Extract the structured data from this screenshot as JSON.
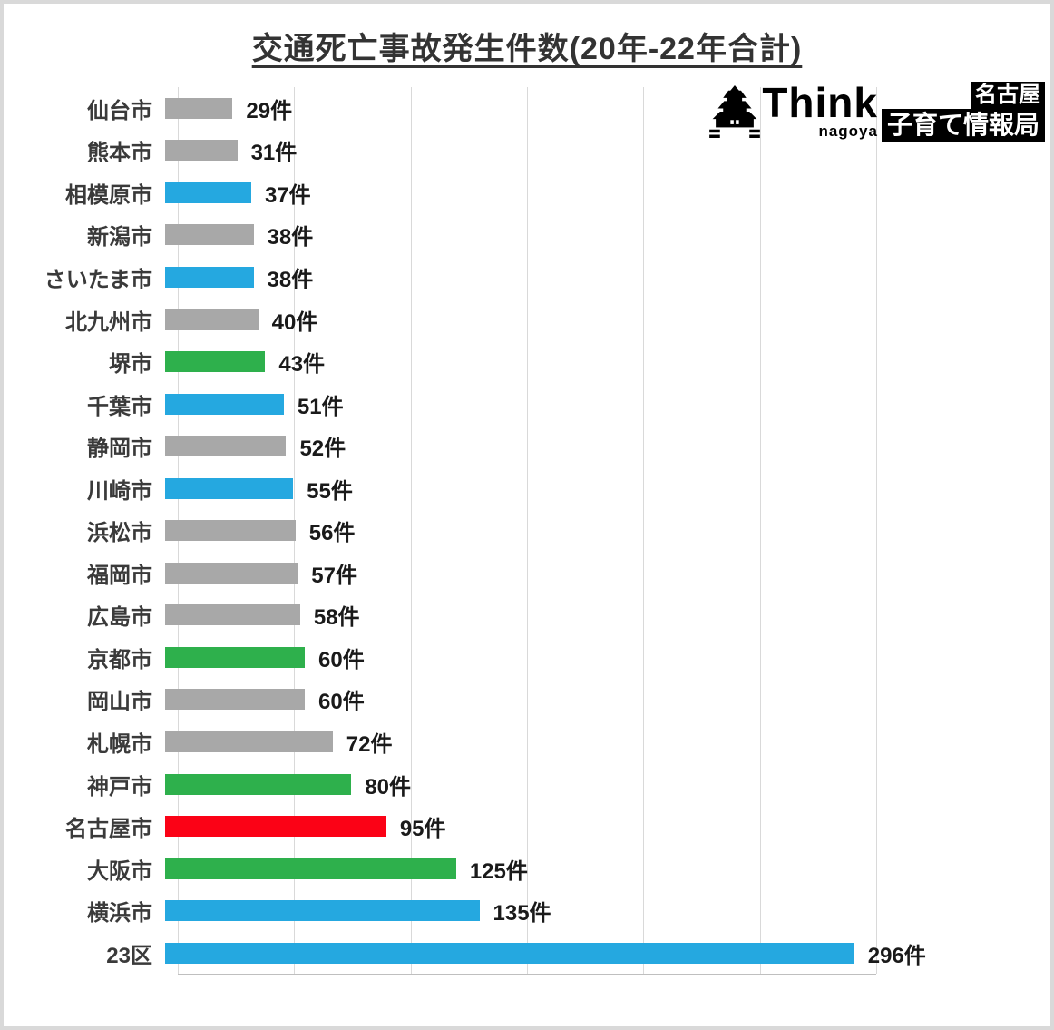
{
  "title": "交通死亡事故発生件数(20年-22年合計)",
  "logo": {
    "think": "Think",
    "nagoya": "nagoya",
    "box_line1": "名古屋",
    "box_line2": "子育て情報局"
  },
  "chart_data": {
    "type": "bar",
    "orientation": "horizontal",
    "title": "交通死亡事故発生件数(20年-22年合計)",
    "xlabel": "",
    "ylabel": "",
    "xlim": [
      0,
      300
    ],
    "gridlines": [
      0,
      50,
      100,
      150,
      200,
      250,
      300
    ],
    "grid": true,
    "legend": "none",
    "unit": "件",
    "categories": [
      "仙台市",
      "熊本市",
      "相模原市",
      "新潟市",
      "さいたま市",
      "北九州市",
      "堺市",
      "千葉市",
      "静岡市",
      "川崎市",
      "浜松市",
      "福岡市",
      "広島市",
      "京都市",
      "岡山市",
      "札幌市",
      "神戸市",
      "名古屋市",
      "大阪市",
      "横浜市",
      "23区"
    ],
    "values": [
      29,
      31,
      37,
      38,
      38,
      40,
      43,
      51,
      52,
      55,
      56,
      57,
      58,
      60,
      60,
      72,
      80,
      95,
      125,
      135,
      296
    ],
    "value_labels": [
      "29件",
      "31件",
      "37件",
      "38件",
      "38件",
      "40件",
      "43件",
      "51件",
      "52件",
      "55件",
      "56件",
      "57件",
      "58件",
      "60件",
      "60件",
      "72件",
      "80件",
      "95件",
      "125件",
      "135件",
      "296件"
    ],
    "bar_colors": [
      "gray",
      "gray",
      "blue",
      "gray",
      "blue",
      "gray",
      "green",
      "blue",
      "gray",
      "blue",
      "gray",
      "gray",
      "gray",
      "green",
      "gray",
      "gray",
      "green",
      "red",
      "green",
      "blue",
      "blue"
    ],
    "color_map": {
      "gray": "#a8a8a8",
      "blue": "#25a8e0",
      "green": "#2eb04c",
      "red": "#fb0216"
    },
    "gridline_color": "#d9d9d9"
  }
}
